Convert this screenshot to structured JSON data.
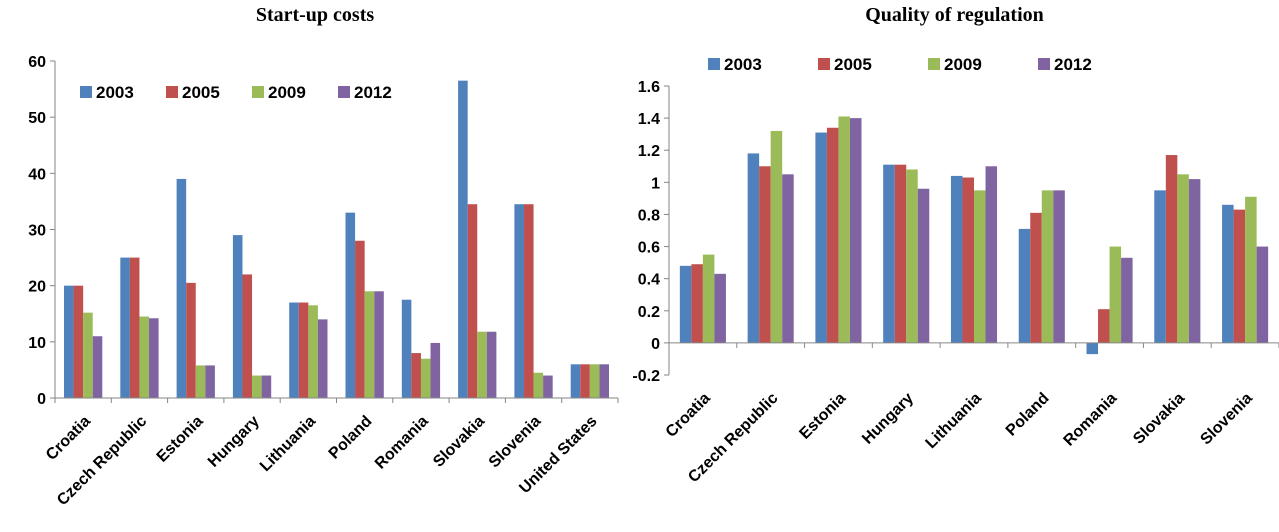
{
  "chart_data": [
    {
      "type": "bar",
      "title": "Start-up costs",
      "categories": [
        "Croatia",
        "Czech Republic",
        "Estonia",
        "Hungary",
        "Lithuania",
        "Poland",
        "Romania",
        "Slovakia",
        "Slovenia",
        "United States"
      ],
      "series": [
        {
          "name": "2003",
          "color": "#4F81BD",
          "values": [
            20,
            25,
            39,
            29,
            17,
            33,
            17.5,
            56.5,
            34.5,
            6
          ]
        },
        {
          "name": "2005",
          "color": "#C0504D",
          "values": [
            20,
            25,
            20.5,
            22,
            17,
            28,
            8,
            34.5,
            34.5,
            6
          ]
        },
        {
          "name": "2009",
          "color": "#9BBB59",
          "values": [
            15.2,
            14.5,
            5.8,
            4,
            16.5,
            19,
            7,
            11.8,
            4.5,
            6
          ]
        },
        {
          "name": "2012",
          "color": "#8064A2",
          "values": [
            11,
            14.2,
            5.8,
            4,
            14,
            19,
            9.8,
            11.8,
            4,
            6
          ]
        }
      ],
      "ylim": [
        0,
        60
      ],
      "yticks": [
        "0",
        "10",
        "20",
        "30",
        "40",
        "50",
        "60"
      ],
      "legend_position": "top-left",
      "grid": false
    },
    {
      "type": "bar",
      "title": "Quality of regulation",
      "categories": [
        "Croatia",
        "Czech Republic",
        "Estonia",
        "Hungary",
        "Lithuania",
        "Poland",
        "Romania",
        "Slovakia",
        "Slovenia"
      ],
      "series": [
        {
          "name": "2003",
          "color": "#4F81BD",
          "values": [
            0.48,
            1.18,
            1.31,
            1.11,
            1.04,
            0.71,
            -0.07,
            0.95,
            0.86
          ]
        },
        {
          "name": "2005",
          "color": "#C0504D",
          "values": [
            0.49,
            1.1,
            1.34,
            1.11,
            1.03,
            0.81,
            0.21,
            1.17,
            0.83
          ]
        },
        {
          "name": "2009",
          "color": "#9BBB59",
          "values": [
            0.55,
            1.32,
            1.41,
            1.08,
            0.95,
            0.95,
            0.6,
            1.05,
            0.91
          ]
        },
        {
          "name": "2012",
          "color": "#8064A2",
          "values": [
            0.43,
            1.05,
            1.4,
            0.96,
            1.1,
            0.95,
            0.53,
            1.02,
            0.6
          ]
        }
      ],
      "ylim": [
        -0.2,
        1.6
      ],
      "yticks": [
        "-0.2",
        "0",
        "0.2",
        "0.4",
        "0.6",
        "0.8",
        "1",
        "1.2",
        "1.4",
        "1.6"
      ],
      "legend_position": "top",
      "grid": false
    }
  ]
}
